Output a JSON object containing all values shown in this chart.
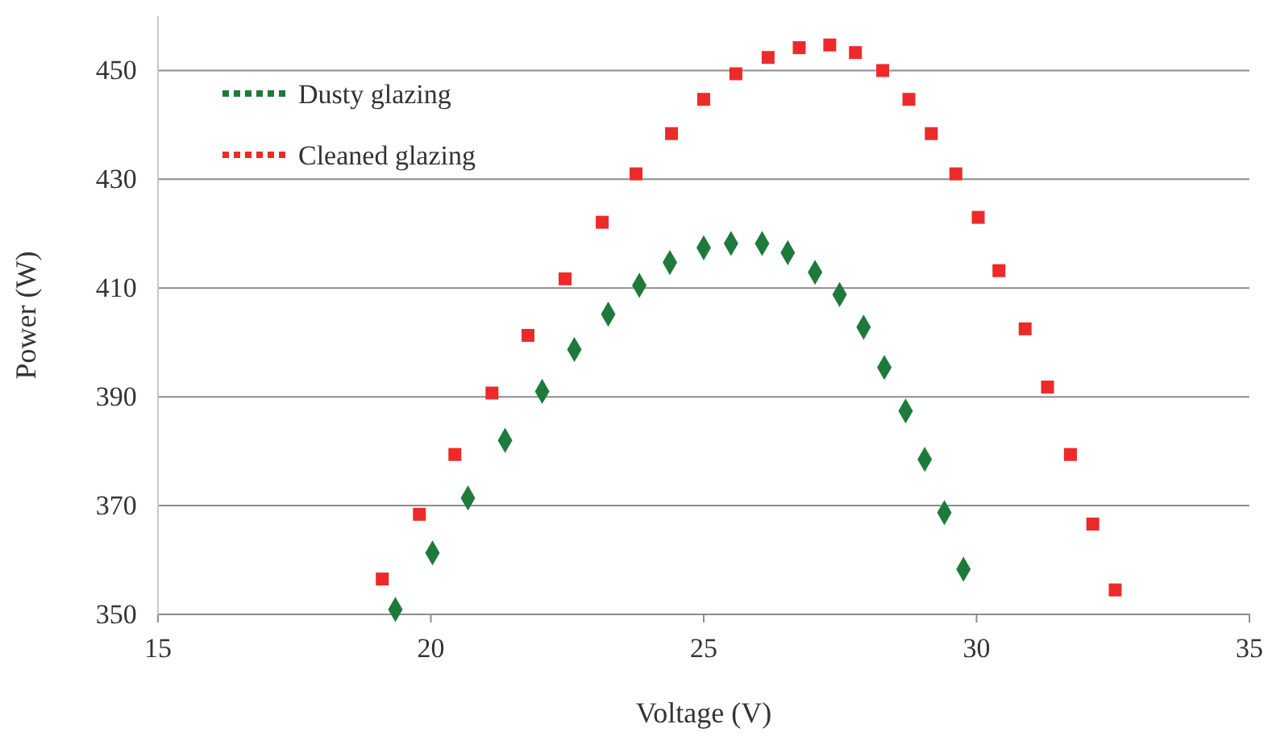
{
  "chart_data": {
    "type": "scatter",
    "xlabel": "Voltage (V)",
    "ylabel": "Power (W)",
    "xlim": [
      15,
      35
    ],
    "xticks": [
      15,
      20,
      25,
      30,
      35
    ],
    "ylim": [
      350,
      460
    ],
    "yticks": [
      350,
      370,
      390,
      410,
      430,
      450
    ],
    "grid": "y",
    "legend": "top left",
    "series": [
      {
        "name": "Dusty glazing",
        "color": "#1e7a3a",
        "marker": "diamond",
        "x": [
          19.35,
          20.03,
          20.68,
          21.36,
          22.04,
          22.63,
          23.25,
          23.82,
          24.38,
          25.0,
          25.5,
          26.07,
          26.54,
          27.04,
          27.49,
          27.93,
          28.31,
          28.7,
          29.05,
          29.41,
          29.76
        ],
        "values": [
          350.9,
          361.3,
          371.4,
          382.0,
          391.0,
          398.7,
          405.2,
          410.5,
          414.7,
          417.4,
          418.2,
          418.2,
          416.5,
          412.9,
          408.8,
          402.8,
          395.4,
          387.4,
          378.5,
          368.7,
          358.3
        ]
      },
      {
        "name": "Cleaned glazing",
        "color": "#ec2a2a",
        "marker": "square",
        "x": [
          19.11,
          19.79,
          20.44,
          21.12,
          21.78,
          22.46,
          23.14,
          23.76,
          24.41,
          25.0,
          25.59,
          26.18,
          26.75,
          27.31,
          27.78,
          28.28,
          28.76,
          29.17,
          29.62,
          30.03,
          30.41,
          30.89,
          31.3,
          31.72,
          32.13,
          32.54
        ],
        "values": [
          356.5,
          368.4,
          379.4,
          390.7,
          401.3,
          411.7,
          422.1,
          431.0,
          438.4,
          444.7,
          449.4,
          452.4,
          454.2,
          454.7,
          453.3,
          450.0,
          444.7,
          438.4,
          431.0,
          423.0,
          413.2,
          402.5,
          391.8,
          379.4,
          366.6,
          354.5
        ]
      }
    ]
  }
}
